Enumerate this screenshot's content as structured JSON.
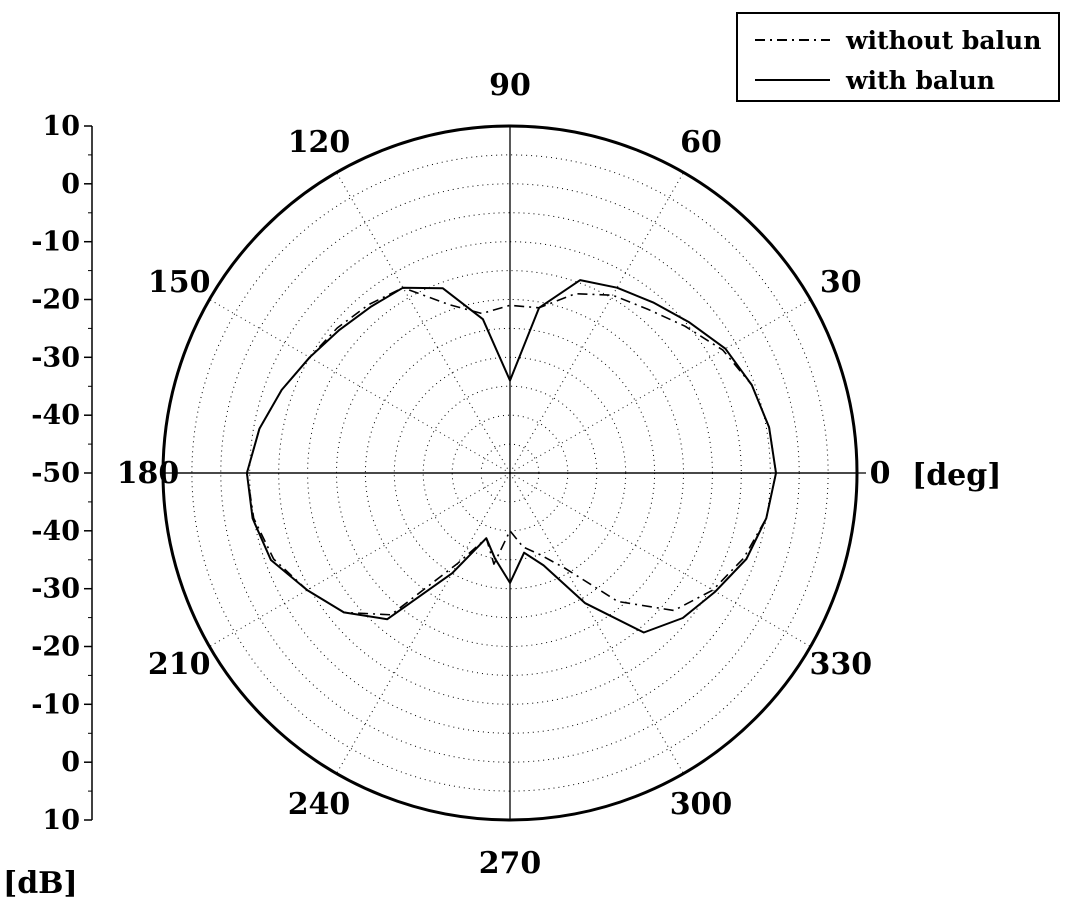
{
  "chart_data": {
    "type": "polar-line",
    "angle_unit_label": "[deg]",
    "radial_unit_label": "[dB]",
    "angle_ticks": [
      "0",
      "30",
      "60",
      "90",
      "120",
      "150",
      "180",
      "210",
      "240",
      "270",
      "300",
      "330"
    ],
    "angle_tick_values": [
      0,
      30,
      60,
      90,
      120,
      150,
      180,
      210,
      240,
      270,
      300,
      330
    ],
    "radial_range": [
      -50,
      10
    ],
    "radial_ticks_upper": [
      "10",
      "0",
      "-10",
      "-20",
      "-30",
      "-40",
      "-50"
    ],
    "radial_ticks_lower": [
      "-50",
      "-40",
      "-30",
      "-20",
      "-10",
      "0",
      "10"
    ],
    "radial_tick_values": [
      10,
      0,
      -10,
      -20,
      -30,
      -40,
      -50
    ],
    "grid": true,
    "legend_position": "top-right",
    "series": [
      {
        "name": "without balun",
        "style": "dash-dot",
        "angles": [
          0,
          10,
          20,
          30,
          40,
          50,
          60,
          70,
          80,
          90,
          100,
          110,
          120,
          130,
          140,
          150,
          160,
          170,
          180,
          190,
          200,
          210,
          220,
          230,
          240,
          250,
          260,
          270,
          280,
          290,
          300,
          310,
          320,
          330,
          340,
          350
        ],
        "values": [
          -4,
          -4.5,
          -5.5,
          -7.5,
          -10.5,
          -13,
          -14.5,
          -17,
          -21,
          -21,
          -22,
          -19,
          -13,
          -12,
          -11,
          -10,
          -8,
          -6,
          -4.5,
          -5,
          -6.5,
          -9.5,
          -12.5,
          -18,
          -32,
          -38,
          -34,
          -40,
          -37,
          -35,
          -31,
          -21,
          -13,
          -9.5,
          -7,
          -5
        ]
      },
      {
        "name": "with balun",
        "style": "solid",
        "angles": [
          0,
          10,
          20,
          30,
          40,
          50,
          60,
          70,
          80,
          90,
          100,
          110,
          120,
          130,
          140,
          150,
          160,
          170,
          180,
          190,
          200,
          210,
          220,
          230,
          240,
          250,
          260,
          270,
          280,
          290,
          300,
          310,
          320,
          330,
          340,
          350
        ],
        "values": [
          -4,
          -4.5,
          -5.5,
          -7,
          -9.5,
          -11.5,
          -13,
          -14.5,
          -21,
          -34,
          -23,
          -16,
          -13,
          -12.5,
          -11.5,
          -10,
          -8,
          -6,
          -4.5,
          -4.8,
          -6,
          -9.5,
          -12.5,
          -17,
          -30,
          -38,
          -35,
          -31,
          -36,
          -33,
          -24,
          -14,
          -11,
          -9,
          -6.5,
          -5
        ]
      }
    ]
  }
}
